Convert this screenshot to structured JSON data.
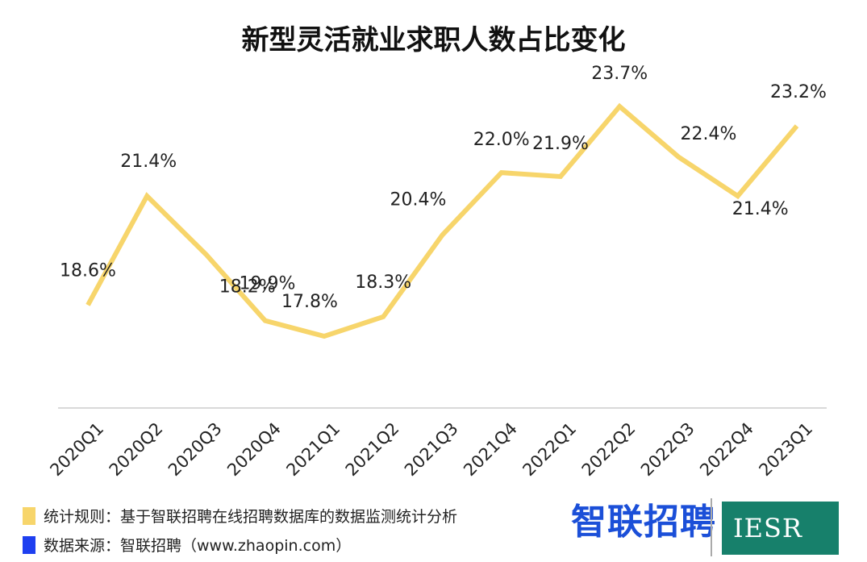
{
  "chart_data": {
    "type": "line",
    "title": "新型灵活就业求职人数占比变化",
    "categories": [
      "2020Q1",
      "2020Q2",
      "2020Q3",
      "2020Q4",
      "2021Q1",
      "2021Q2",
      "2021Q3",
      "2021Q4",
      "2022Q1",
      "2022Q2",
      "2022Q3",
      "2022Q4",
      "2023Q1"
    ],
    "values": [
      18.6,
      21.4,
      19.9,
      18.2,
      17.8,
      18.3,
      20.4,
      22.0,
      21.9,
      23.7,
      22.4,
      21.4,
      23.2
    ],
    "data_labels": [
      "18.6%",
      "21.4%",
      "19.9%",
      "18.2%",
      "17.8%",
      "18.3%",
      "20.4%",
      "22.0%",
      "21.9%",
      "23.7%",
      "22.4%",
      "21.4%",
      "23.2%"
    ],
    "line_color": "#f7d56b",
    "grid": false,
    "xlabel": "",
    "ylabel": ""
  },
  "notes": {
    "rule_text": "统计规则：基于智联招聘在线招聘数据库的数据监测统计分析",
    "rule_color": "#f7d56b",
    "source_text": "数据来源：智联招聘（www.zhaopin.com）",
    "source_color": "#1e3ff0"
  },
  "logos": {
    "zhaopin": "智联招聘",
    "iesr": "IESR"
  }
}
